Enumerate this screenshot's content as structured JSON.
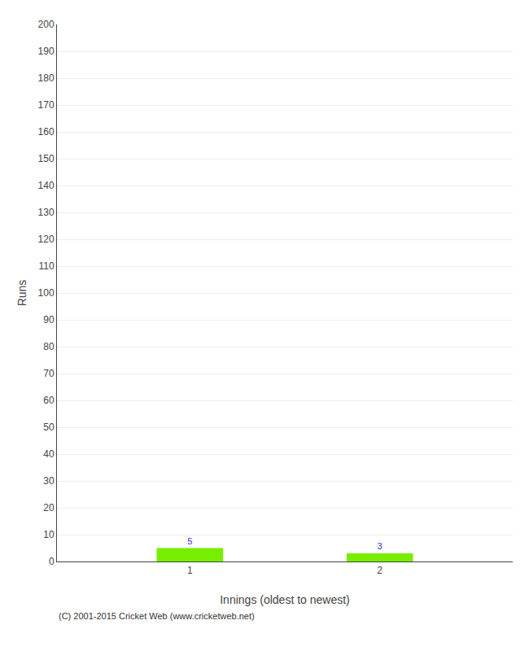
{
  "chart_data": {
    "type": "bar",
    "xlabel": "Innings (oldest to newest)",
    "ylabel": "Runs",
    "x": [
      1,
      2
    ],
    "values": [
      5,
      3
    ],
    "color": "#77ee00",
    "xlim": [
      0.3,
      2.7
    ],
    "xticks": [
      1,
      2
    ],
    "ylim": [
      0,
      200
    ],
    "yticks": [
      0,
      10,
      20,
      30,
      40,
      50,
      60,
      70,
      80,
      90,
      100,
      110,
      120,
      130,
      140,
      150,
      160,
      170,
      180,
      190,
      200
    ],
    "grid": true,
    "data_labels": true,
    "annotations": [
      "(C) 2001-2015 Cricket Web (www.cricketweb.net)"
    ]
  }
}
